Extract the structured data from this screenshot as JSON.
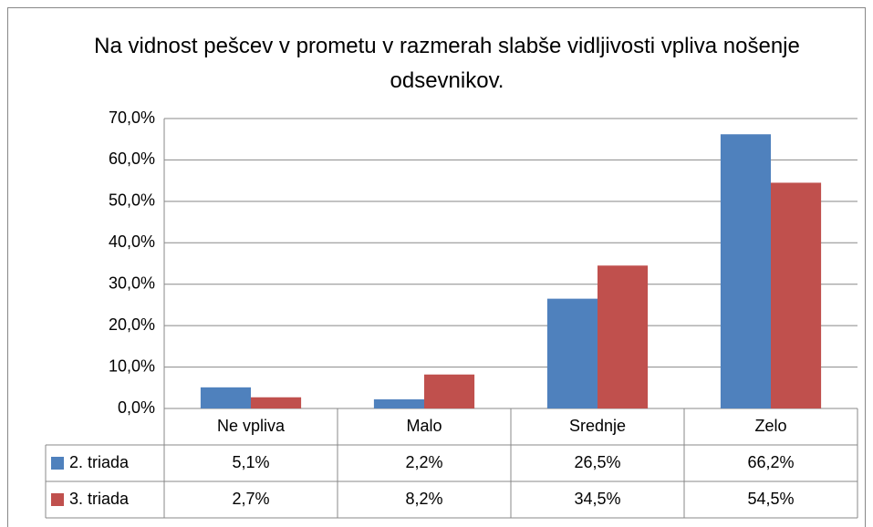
{
  "chart_data": {
    "type": "bar",
    "title": "Na vidnost pešcev v prometu v razmerah slabše vidljivosti vpliva nošenje odsevnikov.",
    "categories": [
      "Ne vpliva",
      "Malo",
      "Srednje",
      "Zelo"
    ],
    "series": [
      {
        "name": "2. triada",
        "color": "#4f81bd",
        "values": [
          5.1,
          2.2,
          26.5,
          66.2
        ],
        "value_labels": [
          "5,1%",
          "2,2%",
          "26,5%",
          "66,2%"
        ]
      },
      {
        "name": "3. triada",
        "color": "#c0504d",
        "values": [
          2.7,
          8.2,
          34.5,
          54.5
        ],
        "value_labels": [
          "2,7%",
          "8,2%",
          "34,5%",
          "54,5%"
        ]
      }
    ],
    "ylim": [
      0,
      70
    ],
    "yticks": [
      {
        "value": 0,
        "label": "0,0%"
      },
      {
        "value": 10,
        "label": "10,0%"
      },
      {
        "value": 20,
        "label": "20,0%"
      },
      {
        "value": 30,
        "label": "30,0%"
      },
      {
        "value": 40,
        "label": "40,0%"
      },
      {
        "value": 50,
        "label": "50,0%"
      },
      {
        "value": 60,
        "label": "60,0%"
      },
      {
        "value": 70,
        "label": "70,0%"
      }
    ],
    "grid": true,
    "data_table": true
  }
}
